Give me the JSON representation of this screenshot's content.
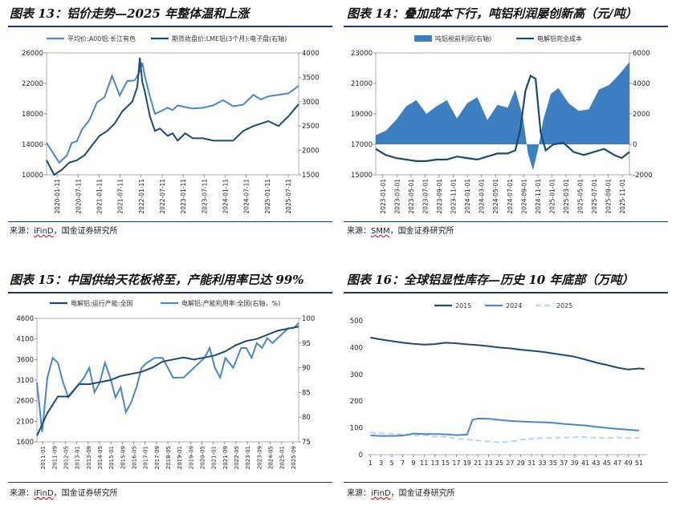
{
  "charts": [
    {
      "title": "图表 13：铝价走势—2025 年整体温和上涨",
      "source_prefix": "来源：",
      "source_name": "iFinD",
      "source_suffix": "，国金证券研究所"
    },
    {
      "title": "图表 14：叠加成本下行，吨铝利润屡创新高（元/吨）",
      "source_prefix": "来源：",
      "source_name": "SMM",
      "source_suffix": "，国金证券研究所"
    },
    {
      "title": "图表 15：中国供给天花板将至，产能利用率已达 99%",
      "source_prefix": "来源：",
      "source_name": "iFinD",
      "source_suffix": "，国金证券研究所"
    },
    {
      "title": "图表 16：全球铝显性库存—历史 10 年底部（万吨）",
      "source_prefix": "来源：",
      "source_name": "iFinD",
      "source_suffix": "，国金证券研究所"
    }
  ],
  "colors": {
    "light": "#4a86c8",
    "dark": "#1b4b6e",
    "area": "#3e7fc1",
    "pale": "#bcd3eb",
    "rule": "#1f3864"
  },
  "chart_data": [
    {
      "type": "line",
      "legend": [
        "平均价:A00铝:长江有色",
        "期货收盘价:LME铝(3个月):电子盘(右轴)"
      ],
      "x_ticks": [
        "2020-01-11",
        "2020-07-11",
        "2021-01-11",
        "2021-07-11",
        "2022-01-11",
        "2022-07-11",
        "2023-01-11",
        "2023-07-11",
        "2024-01-11",
        "2024-07-11",
        "2025-01-11",
        "2025-07-11"
      ],
      "y_left": {
        "range": [
          10000,
          26000
        ],
        "ticks": [
          "10000",
          "14000",
          "18000",
          "22000",
          "26000"
        ]
      },
      "y_right": {
        "range": [
          1500,
          4000
        ],
        "ticks": [
          "1500",
          "2000",
          "2500",
          "3000",
          "3500",
          "4000"
        ]
      },
      "series": [
        {
          "name": "平均价:A00铝:长江有色",
          "axis": "left",
          "x": [
            0,
            0.05,
            0.08,
            0.1,
            0.12,
            0.14,
            0.17,
            0.2,
            0.23,
            0.26,
            0.29,
            0.32,
            0.35,
            0.37,
            0.38,
            0.39,
            0.41,
            0.43,
            0.45,
            0.48,
            0.5,
            0.52,
            0.55,
            0.58,
            0.62,
            0.66,
            0.7,
            0.74,
            0.78,
            0.82,
            0.85,
            0.88,
            0.92,
            0.96,
            1.0
          ],
          "values": [
            14200,
            11600,
            12500,
            14200,
            14400,
            15900,
            17200,
            19500,
            20200,
            23000,
            20400,
            22300,
            22400,
            23600,
            24700,
            22900,
            20300,
            18000,
            18300,
            18800,
            18500,
            19100,
            18900,
            18700,
            18800,
            19100,
            19800,
            19000,
            19200,
            20500,
            19900,
            20300,
            20500,
            20700,
            21700
          ]
        },
        {
          "name": "期货收盘价:LME铝(3个月):电子盘(右轴)",
          "axis": "right",
          "x": [
            0,
            0.03,
            0.06,
            0.09,
            0.12,
            0.15,
            0.18,
            0.21,
            0.24,
            0.27,
            0.3,
            0.32,
            0.34,
            0.36,
            0.37,
            0.38,
            0.39,
            0.41,
            0.43,
            0.45,
            0.48,
            0.5,
            0.52,
            0.55,
            0.58,
            0.62,
            0.66,
            0.7,
            0.74,
            0.78,
            0.82,
            0.85,
            0.88,
            0.92,
            0.96,
            1.0
          ],
          "values": [
            1800,
            1500,
            1600,
            1750,
            1800,
            1900,
            2100,
            2300,
            2400,
            2550,
            2800,
            2900,
            3000,
            3300,
            3900,
            3400,
            3200,
            2700,
            2400,
            2450,
            2300,
            2350,
            2200,
            2350,
            2250,
            2250,
            2200,
            2200,
            2200,
            2400,
            2500,
            2550,
            2600,
            2500,
            2700,
            2950
          ]
        }
      ]
    },
    {
      "type": "area+line",
      "legend": [
        "吨铝税前利润(右轴)",
        "电解铝完全成本"
      ],
      "x_ticks": [
        "2023-01-01",
        "2023-03-01",
        "2023-05-01",
        "2023-07-01",
        "2023-09-01",
        "2023-11-01",
        "2024-01-01",
        "2024-03-01",
        "2024-05-01",
        "2024-07-01",
        "2024-09-01",
        "2024-11-01",
        "2025-01-01",
        "2025-03-01",
        "2025-05-01",
        "2025-07-01",
        "2025-09-01",
        "2025-11-01"
      ],
      "y_left": {
        "range": [
          15000,
          23000
        ],
        "ticks": [
          "15000",
          "17000",
          "19000",
          "21000",
          "23000"
        ]
      },
      "y_right": {
        "range": [
          -2000,
          6000
        ],
        "ticks": [
          "-2000",
          "0",
          "2000",
          "4000",
          "6000"
        ]
      },
      "series": [
        {
          "name": "吨铝税前利润(右轴)",
          "axis": "right",
          "x": [
            0,
            0.04,
            0.08,
            0.12,
            0.16,
            0.2,
            0.24,
            0.28,
            0.32,
            0.36,
            0.4,
            0.44,
            0.48,
            0.52,
            0.55,
            0.58,
            0.6,
            0.62,
            0.64,
            0.66,
            0.69,
            0.72,
            0.76,
            0.8,
            0.84,
            0.88,
            0.92,
            0.96,
            1.0
          ],
          "values": [
            600,
            900,
            1600,
            2500,
            2900,
            2000,
            2500,
            2900,
            1700,
            2700,
            3100,
            1600,
            2600,
            2400,
            3600,
            1800,
            -600,
            -1700,
            -300,
            1600,
            3300,
            3700,
            2700,
            2200,
            2300,
            3600,
            3900,
            4600,
            5400
          ]
        },
        {
          "name": "电解铝完全成本",
          "axis": "left",
          "x": [
            0,
            0.04,
            0.08,
            0.12,
            0.16,
            0.2,
            0.24,
            0.28,
            0.32,
            0.36,
            0.4,
            0.44,
            0.48,
            0.52,
            0.55,
            0.57,
            0.59,
            0.61,
            0.63,
            0.65,
            0.67,
            0.7,
            0.74,
            0.78,
            0.82,
            0.86,
            0.9,
            0.94,
            0.97,
            1.0
          ],
          "values": [
            16700,
            16300,
            16100,
            16000,
            15900,
            15900,
            16000,
            16000,
            16200,
            16100,
            16000,
            16200,
            16400,
            16400,
            16600,
            18000,
            20500,
            21500,
            21300,
            17800,
            16600,
            17000,
            17100,
            16500,
            16300,
            16500,
            16700,
            16300,
            16100,
            16500
          ]
        }
      ]
    },
    {
      "type": "line",
      "legend": [
        "电解铝:运行产能:全国",
        "电解铝:产能利用率:全国(右轴，%)"
      ],
      "x_ticks": [
        "2011-01",
        "2011-09",
        "2012-05",
        "2013-01",
        "2013-09",
        "2014-05",
        "2015-01",
        "2015-09",
        "2016-05",
        "2017-01",
        "2017-09",
        "2018-05",
        "2019-01",
        "2019-09",
        "2020-05",
        "2021-01",
        "2021-09",
        "2022-05",
        "2023-01",
        "2023-09",
        "2024-05",
        "2025-01",
        "2025-09"
      ],
      "y_left": {
        "range": [
          1600,
          4600
        ],
        "ticks": [
          "1600",
          "2100",
          "2600",
          "3100",
          "3600",
          "4100",
          "4600"
        ]
      },
      "y_right": {
        "range": [
          75,
          100
        ],
        "ticks": [
          "75",
          "80",
          "85",
          "90",
          "95",
          "100"
        ]
      },
      "series": [
        {
          "name": "电解铝:运行产能:全国",
          "axis": "left",
          "x": [
            0,
            0.04,
            0.08,
            0.12,
            0.16,
            0.2,
            0.24,
            0.28,
            0.32,
            0.36,
            0.4,
            0.44,
            0.48,
            0.52,
            0.56,
            0.6,
            0.64,
            0.68,
            0.72,
            0.76,
            0.8,
            0.84,
            0.88,
            0.92,
            0.96,
            1.0
          ],
          "values": [
            1750,
            2300,
            2700,
            2700,
            3000,
            3000,
            3050,
            3100,
            3200,
            3250,
            3300,
            3400,
            3550,
            3600,
            3650,
            3600,
            3650,
            3700,
            3800,
            3950,
            4050,
            4100,
            4200,
            4300,
            4350,
            4400
          ]
        },
        {
          "name": "电解铝:产能利用率:全国(右轴，%)",
          "axis": "right",
          "x": [
            0,
            0.02,
            0.04,
            0.06,
            0.08,
            0.1,
            0.12,
            0.15,
            0.18,
            0.2,
            0.22,
            0.24,
            0.26,
            0.28,
            0.3,
            0.32,
            0.34,
            0.36,
            0.38,
            0.4,
            0.42,
            0.45,
            0.48,
            0.52,
            0.56,
            0.6,
            0.64,
            0.66,
            0.68,
            0.7,
            0.72,
            0.75,
            0.78,
            0.8,
            0.82,
            0.84,
            0.86,
            0.88,
            0.9,
            0.92,
            0.94,
            0.96,
            0.98,
            1.0
          ],
          "values": [
            87,
            77,
            88,
            92,
            91,
            87,
            84,
            86,
            88,
            90,
            85,
            87,
            91,
            88,
            84,
            86,
            81,
            83,
            86,
            90,
            91,
            92,
            92,
            88,
            88,
            90,
            92,
            94,
            90,
            88,
            92,
            90,
            94,
            94,
            92,
            95,
            94,
            96,
            95,
            96,
            97,
            98,
            98,
            99
          ]
        }
      ]
    },
    {
      "type": "line",
      "legend": [
        "2015",
        "2024",
        "2025"
      ],
      "x_ticks": [
        "1",
        "3",
        "5",
        "7",
        "9",
        "11",
        "13",
        "15",
        "17",
        "19",
        "21",
        "23",
        "25",
        "27",
        "29",
        "31",
        "33",
        "35",
        "37",
        "39",
        "41",
        "43",
        "45",
        "47",
        "49",
        "51"
      ],
      "y_left": {
        "range": [
          0,
          500
        ],
        "ticks": [
          "0",
          "100",
          "200",
          "300",
          "400",
          "500"
        ]
      },
      "series": [
        {
          "name": "2015",
          "x": [
            1,
            3,
            5,
            7,
            9,
            11,
            13,
            15,
            17,
            19,
            21,
            23,
            25,
            27,
            29,
            31,
            33,
            35,
            37,
            39,
            41,
            43,
            45,
            47,
            49,
            51,
            52
          ],
          "values": [
            437,
            430,
            424,
            418,
            414,
            411,
            413,
            418,
            416,
            412,
            409,
            405,
            400,
            397,
            392,
            388,
            384,
            378,
            372,
            366,
            355,
            344,
            335,
            325,
            318,
            322,
            320
          ]
        },
        {
          "name": "2024",
          "x": [
            1,
            3,
            5,
            7,
            9,
            11,
            13,
            15,
            17,
            19,
            20,
            21,
            23,
            25,
            27,
            29,
            31,
            33,
            35,
            37,
            39,
            41,
            43,
            45,
            47,
            49,
            51
          ],
          "values": [
            72,
            70,
            70,
            71,
            79,
            77,
            77,
            76,
            73,
            75,
            130,
            135,
            134,
            130,
            126,
            124,
            122,
            121,
            119,
            115,
            112,
            109,
            104,
            100,
            96,
            93,
            90
          ]
        },
        {
          "name": "2025",
          "x": [
            1,
            3,
            5,
            7,
            9,
            11,
            13,
            15,
            17,
            19,
            21,
            23,
            25,
            27,
            29,
            31,
            33,
            35,
            37,
            39,
            41,
            43,
            45,
            47,
            49,
            51
          ],
          "values": [
            83,
            80,
            78,
            76,
            72,
            73,
            68,
            66,
            60,
            57,
            53,
            49,
            46,
            48,
            56,
            59,
            62,
            63,
            64,
            65,
            66,
            63,
            62,
            64,
            62,
            63
          ]
        }
      ]
    }
  ]
}
